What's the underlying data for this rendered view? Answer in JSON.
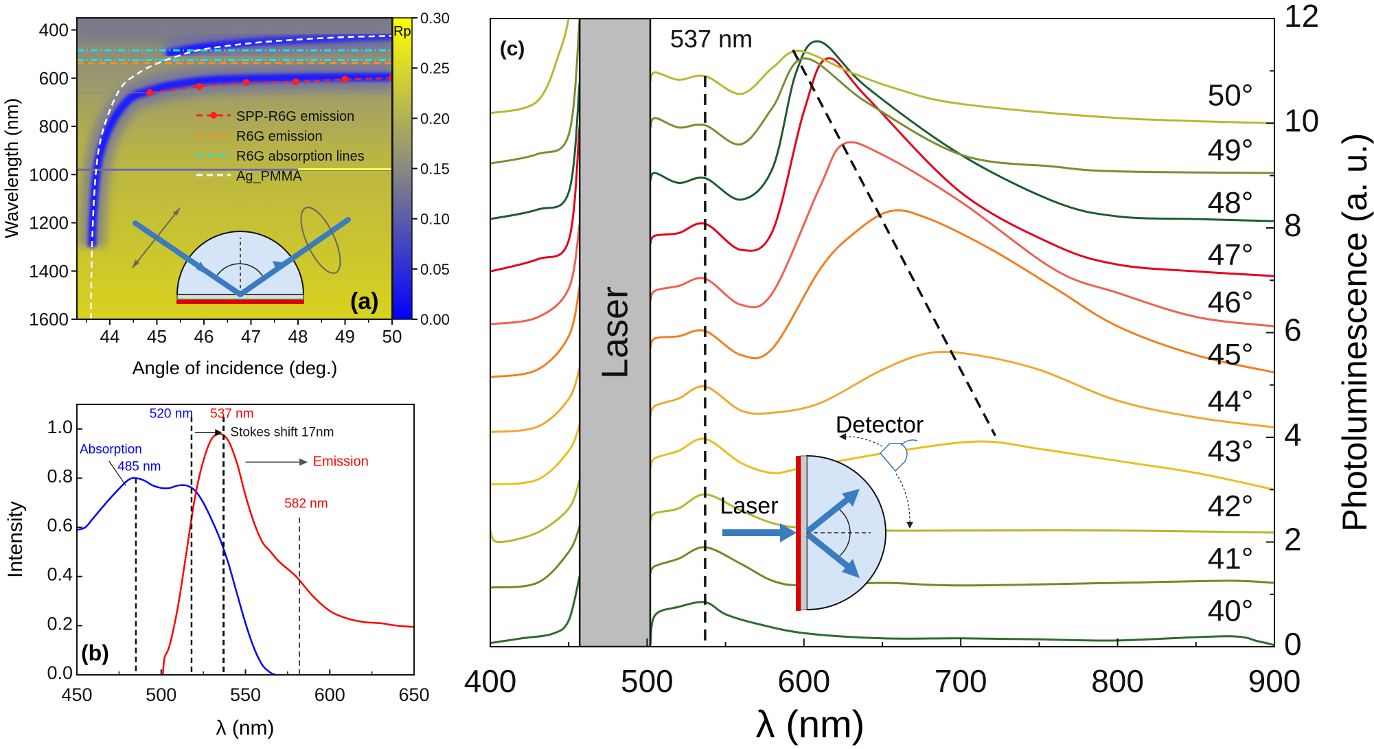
{
  "chart_data": [
    {
      "panel": "(a)",
      "type": "heatmap",
      "xlabel": "Angle of incidence (deg.)",
      "ylabel": "Wavelength (nm)",
      "xlim": [
        43.3,
        50
      ],
      "ylim": [
        1600,
        350
      ],
      "xticks": [
        "44",
        "45",
        "46",
        "47",
        "48",
        "49",
        "50"
      ],
      "yticks": [
        "400",
        "600",
        "800",
        "1000",
        "1200",
        "1400",
        "1600"
      ],
      "colorbar": {
        "label": "Rp",
        "ticks": [
          "0.00",
          "0.05",
          "0.10",
          "0.15",
          "0.20",
          "0.25",
          "0.30"
        ],
        "range": [
          0,
          0.3
        ],
        "colors": [
          "#0000ff",
          "#8a8a80",
          "#ffff00"
        ]
      },
      "legend": {
        "placement": "center-right",
        "entries": [
          {
            "label": "SPP-R6G emission",
            "color": "#ff2020",
            "style": "dashed-dots"
          },
          {
            "label": "R6G emission",
            "color": "#ff8c1a",
            "style": "dashed"
          },
          {
            "label": "R6G absorption lines",
            "color": "#22e0e0",
            "style": "dash-dot"
          },
          {
            "label": "Ag_PMMA",
            "color": "#ffffff",
            "style": "dashed"
          }
        ]
      },
      "spp_r6g_emission": {
        "x": [
          44.85,
          45.9,
          46.9,
          47.95,
          49,
          50
        ],
        "y": [
          660,
          635,
          618,
          615,
          605,
          600
        ]
      },
      "r6g_emission": 537,
      "r6g_absorption_lines": [
        485,
        525
      ],
      "ag_pmma": {
        "x": [
          43.6,
          43.62,
          43.7,
          43.85,
          44.2,
          44.6,
          45,
          45.5,
          46,
          47,
          48,
          49,
          50
        ],
        "y": [
          1600,
          1300,
          1000,
          820,
          650,
          580,
          540,
          505,
          480,
          455,
          440,
          430,
          425
        ]
      },
      "reflectance_dip": {
        "x": [
          43.62,
          43.65,
          43.75,
          44,
          44.4,
          44.8,
          45.3,
          46,
          47,
          48,
          49,
          50
        ],
        "y": [
          1300,
          1150,
          950,
          800,
          690,
          655,
          630,
          610,
          602,
          598,
          596,
          595
        ]
      },
      "panel_label": "(a)"
    },
    {
      "panel": "(b)",
      "type": "line",
      "xlabel": "λ (nm)",
      "ylabel": "Intensity",
      "xlim": [
        450,
        650
      ],
      "ylim": [
        0,
        1.1
      ],
      "xticks": [
        "450",
        "500",
        "550",
        "600",
        "650"
      ],
      "yticks": [
        "0.0",
        "0.2",
        "0.4",
        "0.6",
        "0.8",
        "1.0"
      ],
      "series": [
        {
          "name": "Absorption",
          "color": "#0000ff",
          "x": [
            450,
            455,
            460,
            470,
            480,
            485,
            490,
            495,
            500,
            505,
            510,
            515,
            520,
            525,
            530,
            535,
            540,
            545,
            550,
            555,
            560,
            565,
            568
          ],
          "y": [
            0.59,
            0.6,
            0.64,
            0.72,
            0.79,
            0.8,
            0.79,
            0.77,
            0.76,
            0.76,
            0.77,
            0.77,
            0.75,
            0.7,
            0.63,
            0.55,
            0.45,
            0.33,
            0.21,
            0.11,
            0.04,
            0.008,
            0
          ]
        },
        {
          "name": "Emission",
          "color": "#ff0000",
          "x": [
            501,
            502,
            505,
            510,
            515,
            520,
            525,
            530,
            535,
            540,
            545,
            550,
            555,
            560,
            565,
            570,
            580,
            590,
            600,
            610,
            620,
            630,
            640,
            650
          ],
          "y": [
            0,
            0.07,
            0.12,
            0.28,
            0.5,
            0.72,
            0.87,
            0.96,
            0.98,
            0.95,
            0.86,
            0.73,
            0.62,
            0.54,
            0.5,
            0.46,
            0.4,
            0.32,
            0.26,
            0.23,
            0.215,
            0.21,
            0.2,
            0.195
          ]
        }
      ],
      "annotations": {
        "a485": "485 nm",
        "a520": "520 nm",
        "a537": "537 nm",
        "a582": "582 nm",
        "stokes": "Stokes shift 17nm",
        "absorption": "Absorption",
        "emission": "Emission"
      },
      "vlines": [
        485,
        518,
        537,
        582
      ],
      "panel_label": "(b)"
    },
    {
      "panel": "(c)",
      "type": "line",
      "xlabel": "λ (nm)",
      "ylabel": "Photoluminescence (a. u.)",
      "xlim": [
        400,
        900
      ],
      "ylim": [
        0,
        12
      ],
      "xticks": [
        "400",
        "500",
        "600",
        "700",
        "800",
        "900"
      ],
      "yticks": [
        "0",
        "2",
        "4",
        "6",
        "8",
        "10",
        "12"
      ],
      "laser_band": [
        457,
        502
      ],
      "laser_label": "Laser",
      "line_537_label": "537 nm",
      "inset": {
        "laser": "Laser",
        "detector": "Detector"
      },
      "panel_label": "(c)",
      "series": [
        {
          "name": "40°",
          "color": "#2e6b2e",
          "label_y": 0.7,
          "pre": {
            "x": [
              400,
              420,
              440,
              450,
              457
            ],
            "y": [
              0.07,
              0.16,
              0.25,
              0.5,
              1.35
            ]
          },
          "x": [
            502,
            505,
            520,
            537,
            550,
            570,
            600,
            650,
            700,
            750,
            800,
            870,
            890,
            900
          ],
          "y": [
            0.03,
            0.6,
            0.76,
            0.85,
            0.62,
            0.44,
            0.26,
            0.16,
            0.16,
            0.14,
            0.12,
            0.2,
            0.1,
            0.03
          ]
        },
        {
          "name": "41°",
          "color": "#6b8e23",
          "label_y": 1.7,
          "pre": {
            "x": [
              400,
              430,
              450,
              457
            ],
            "y": [
              1.13,
              1.22,
              1.81,
              2.3
            ]
          },
          "x": [
            502,
            505,
            520,
            537,
            560,
            580,
            600,
            650,
            700,
            800,
            870,
            900
          ],
          "y": [
            1.4,
            1.54,
            1.68,
            1.9,
            1.58,
            1.26,
            1.17,
            1.22,
            1.17,
            1.22,
            1.26,
            1.22
          ]
        },
        {
          "name": "42°",
          "color": "#b5b82a",
          "label_y": 2.7,
          "pre": {
            "x": [
              400,
              405,
              430,
              450,
              457
            ],
            "y": [
              2.22,
              2.0,
              2.18,
              2.64,
              3.19
            ]
          },
          "x": [
            502,
            505,
            520,
            537,
            560,
            580,
            600,
            650,
            700,
            800,
            900
          ],
          "y": [
            2.4,
            2.55,
            2.64,
            2.91,
            2.6,
            2.36,
            2.27,
            2.22,
            2.22,
            2.22,
            2.18
          ]
        },
        {
          "name": "43°",
          "color": "#e6c020",
          "label_y": 3.75,
          "pre": {
            "x": [
              400,
              430,
              450,
              457
            ],
            "y": [
              3.1,
              3.19,
              3.74,
              4.24
            ]
          },
          "x": [
            502,
            505,
            520,
            537,
            560,
            580,
            600,
            650,
            710,
            750,
            800,
            850,
            900
          ],
          "y": [
            3.4,
            3.6,
            3.74,
            3.97,
            3.51,
            3.32,
            3.42,
            3.69,
            3.92,
            3.78,
            3.55,
            3.32,
            3.0
          ]
        },
        {
          "name": "44°",
          "color": "#f0a830",
          "label_y": 4.7,
          "pre": {
            "x": [
              400,
              430,
              450,
              457
            ],
            "y": [
              4.1,
              4.2,
              4.73,
              5.33
            ]
          },
          "x": [
            502,
            505,
            520,
            537,
            560,
            580,
            610,
            650,
            680,
            710,
            750,
            800,
            850,
            900
          ],
          "y": [
            4.4,
            4.6,
            4.74,
            4.97,
            4.51,
            4.47,
            4.65,
            5.29,
            5.61,
            5.57,
            5.29,
            4.7,
            4.38,
            4.19
          ]
        },
        {
          "name": "45°",
          "color": "#f07f20",
          "label_y": 5.6,
          "pre": {
            "x": [
              400,
              430,
              450,
              457
            ],
            "y": [
              5.15,
              5.29,
              5.93,
              6.89
            ]
          },
          "x": [
            502,
            505,
            520,
            537,
            560,
            580,
            610,
            630,
            655,
            680,
            720,
            760,
            800,
            850,
            900
          ],
          "y": [
            5.7,
            5.89,
            5.93,
            6.03,
            5.57,
            5.7,
            7.2,
            7.85,
            8.32,
            8.17,
            7.58,
            6.85,
            6.12,
            5.57,
            5.24
          ]
        },
        {
          "name": "46°",
          "color": "#f06050",
          "label_y": 6.6,
          "pre": {
            "x": [
              400,
              430,
              450,
              457
            ],
            "y": [
              6.16,
              6.29,
              6.84,
              8.08
            ]
          },
          "x": [
            502,
            505,
            520,
            537,
            560,
            580,
            610,
            625,
            650,
            700,
            760,
            800,
            850,
            900
          ],
          "y": [
            6.6,
            6.8,
            6.89,
            7.03,
            6.53,
            6.76,
            8.77,
            9.6,
            9.4,
            8.5,
            7.2,
            6.76,
            6.3,
            6.12
          ]
        },
        {
          "name": "47°",
          "color": "#e8001c",
          "label_y": 7.5,
          "pre": {
            "x": [
              400,
              430,
              450,
              457
            ],
            "y": [
              7.17,
              7.4,
              7.76,
              9.96
            ]
          },
          "x": [
            502,
            505,
            520,
            537,
            560,
            580,
            600,
            615,
            640,
            700,
            760,
            800,
            850,
            900
          ],
          "y": [
            7.7,
            7.85,
            7.9,
            8.08,
            7.58,
            7.94,
            10.23,
            11.24,
            10.5,
            8.68,
            7.67,
            7.3,
            7.17,
            7.08
          ]
        },
        {
          "name": "48°",
          "color": "#1e5c30",
          "label_y": 8.5,
          "pre": {
            "x": [
              400,
              430,
              450,
              457
            ],
            "y": [
              8.17,
              8.35,
              8.68,
              10.78
            ]
          },
          "x": [
            502,
            505,
            520,
            537,
            560,
            580,
            595,
            610,
            640,
            700,
            760,
            800,
            850,
            900
          ],
          "y": [
            8.9,
            9.05,
            8.86,
            8.95,
            8.54,
            9.14,
            10.97,
            11.56,
            10.69,
            9.4,
            8.5,
            8.22,
            8.17,
            8.13
          ]
        },
        {
          "name": "49°",
          "color": "#789030",
          "label_y": 9.5,
          "pre": {
            "x": [
              400,
              430,
              450,
              457
            ],
            "y": [
              9.23,
              9.41,
              9.78,
              12
            ]
          },
          "x": [
            502,
            505,
            520,
            537,
            560,
            580,
            600,
            640,
            700,
            760,
            800,
            900
          ],
          "y": [
            9.9,
            10.1,
            9.92,
            9.96,
            9.6,
            10.3,
            11.24,
            10.4,
            9.4,
            9.17,
            9.08,
            9.05
          ]
        },
        {
          "name": "50°",
          "color": "#b8b830",
          "label_y": 10.55,
          "pre": {
            "x": [
              400,
              430,
              445,
              450
            ],
            "y": [
              10.19,
              10.42,
              11.43,
              12
            ]
          },
          "x": [
            502,
            505,
            520,
            537,
            560,
            580,
            597,
            630,
            660,
            700,
            800,
            900
          ],
          "y": [
            10.8,
            10.97,
            10.83,
            10.9,
            10.56,
            11.06,
            11.38,
            10.97,
            10.65,
            10.37,
            10.1,
            10.0
          ]
        }
      ],
      "peak_trend": {
        "x": [
          593,
          722
        ],
        "y": [
          11.4,
          4.03
        ]
      }
    }
  ]
}
